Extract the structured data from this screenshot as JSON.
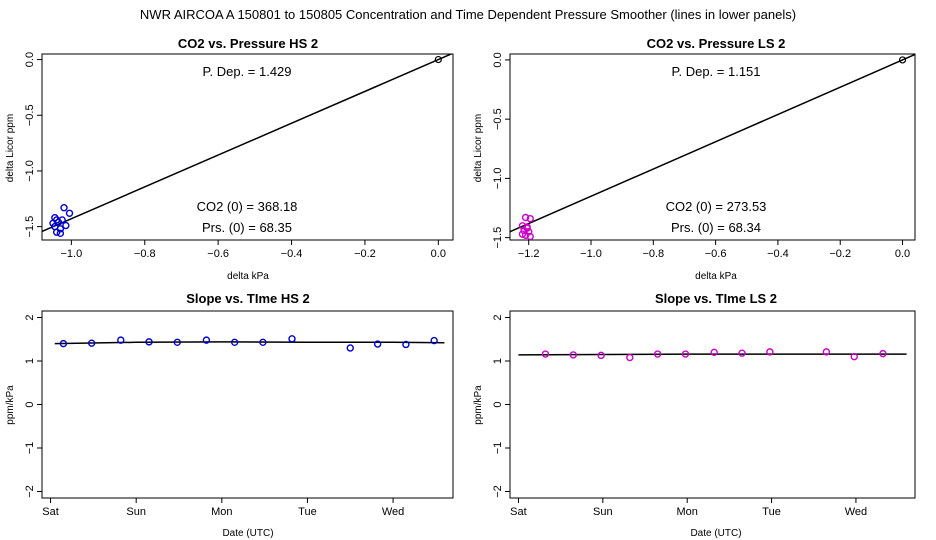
{
  "main_title": "NWR   AIRCOA A   150801 to 150805   Concentration and Time Dependent Pressure Smoother (lines in lower panels)",
  "colors": {
    "hs_points": "#0000cc",
    "ls_points": "#cc00cc",
    "line": "#000000"
  },
  "chart_data": [
    {
      "id": "hs-scatter",
      "type": "scatter",
      "title": "CO2 vs. Pressure HS 2",
      "xlabel": "delta kPa",
      "ylabel": "delta Licor ppm",
      "xlim": [
        -1.08,
        0.04
      ],
      "ylim": [
        -1.62,
        0.05
      ],
      "xticks": [
        -1.0,
        -0.8,
        -0.6,
        -0.4,
        -0.2,
        0.0
      ],
      "xtick_labels": [
        "−1.0",
        "−0.8",
        "−0.6",
        "−0.4",
        "−0.2",
        "0.0"
      ],
      "yticks": [
        0.0,
        -0.5,
        -1.0,
        -1.5
      ],
      "ytick_labels": [
        "0.0",
        "−0.5",
        "−1.0",
        "−1.5"
      ],
      "fit_line": {
        "slope": 1.429,
        "intercept": 0.0
      },
      "origin_point": {
        "x": 0.0,
        "y": 0.0
      },
      "points": [
        {
          "x": -1.035,
          "y": -1.46
        },
        {
          "x": -1.04,
          "y": -1.44
        },
        {
          "x": -1.045,
          "y": -1.5
        },
        {
          "x": -1.03,
          "y": -1.52
        },
        {
          "x": -1.02,
          "y": -1.33
        },
        {
          "x": -1.005,
          "y": -1.38
        },
        {
          "x": -1.025,
          "y": -1.44
        },
        {
          "x": -1.05,
          "y": -1.47
        },
        {
          "x": -1.04,
          "y": -1.55
        },
        {
          "x": -1.015,
          "y": -1.49
        },
        {
          "x": -1.03,
          "y": -1.56
        },
        {
          "x": -1.045,
          "y": -1.42
        }
      ],
      "annotations": {
        "p_dep": "P. Dep. =  1.429",
        "co2_0": "CO2 (0) =  368.18",
        "prs_0": "Prs. (0) =  68.35"
      }
    },
    {
      "id": "ls-scatter",
      "type": "scatter",
      "title": "CO2 vs. Pressure LS 2",
      "xlabel": "delta kPa",
      "ylabel": "delta Licor ppm",
      "xlim": [
        -1.26,
        0.04
      ],
      "ylim": [
        -1.52,
        0.05
      ],
      "xticks": [
        -1.2,
        -1.0,
        -0.8,
        -0.6,
        -0.4,
        -0.2,
        0.0
      ],
      "xtick_labels": [
        "−1.2",
        "−1.0",
        "−0.8",
        "−0.6",
        "−0.4",
        "−0.2",
        "0.0"
      ],
      "yticks": [
        0.0,
        -0.5,
        -1.0,
        -1.5
      ],
      "ytick_labels": [
        "0.0",
        "−0.5",
        "−1.0",
        "−1.5"
      ],
      "fit_line": {
        "slope": 1.151,
        "intercept": 0.0
      },
      "origin_point": {
        "x": 0.0,
        "y": 0.0
      },
      "points": [
        {
          "x": -1.21,
          "y": -1.33
        },
        {
          "x": -1.195,
          "y": -1.34
        },
        {
          "x": -1.22,
          "y": -1.4
        },
        {
          "x": -1.205,
          "y": -1.41
        },
        {
          "x": -1.215,
          "y": -1.44
        },
        {
          "x": -1.2,
          "y": -1.45
        },
        {
          "x": -1.21,
          "y": -1.48
        },
        {
          "x": -1.195,
          "y": -1.49
        },
        {
          "x": -1.22,
          "y": -1.47
        },
        {
          "x": -1.205,
          "y": -1.42
        }
      ],
      "annotations": {
        "p_dep": "P. Dep. =  1.151",
        "co2_0": "CO2 (0) =  273.53",
        "prs_0": "Prs. (0) =  68.34"
      }
    },
    {
      "id": "hs-slope",
      "type": "scatter",
      "title": "Slope vs. TIme HS 2",
      "xlabel": "Date (UTC)",
      "ylabel": "ppm/kPa",
      "xlim": [
        -0.1,
        4.7
      ],
      "ylim": [
        -2.15,
        2.15
      ],
      "xticks": [
        0,
        1,
        2,
        3,
        4
      ],
      "xtick_labels": [
        "Sat",
        "Sun",
        "Mon",
        "Tue",
        "Wed"
      ],
      "yticks": [
        2,
        1,
        0,
        -1,
        -2
      ],
      "ytick_labels": [
        "2",
        "1",
        "0",
        "−1",
        "−2"
      ],
      "points": [
        {
          "x": 0.15,
          "y": 1.4
        },
        {
          "x": 0.48,
          "y": 1.41
        },
        {
          "x": 0.82,
          "y": 1.48
        },
        {
          "x": 1.15,
          "y": 1.44
        },
        {
          "x": 1.48,
          "y": 1.43
        },
        {
          "x": 1.82,
          "y": 1.48
        },
        {
          "x": 2.15,
          "y": 1.43
        },
        {
          "x": 2.48,
          "y": 1.43
        },
        {
          "x": 2.82,
          "y": 1.51
        },
        {
          "x": 3.5,
          "y": 1.3
        },
        {
          "x": 3.82,
          "y": 1.39
        },
        {
          "x": 4.15,
          "y": 1.38
        },
        {
          "x": 4.48,
          "y": 1.47
        }
      ],
      "smoother": [
        {
          "x": 0.05,
          "y": 1.4
        },
        {
          "x": 1.0,
          "y": 1.43
        },
        {
          "x": 2.0,
          "y": 1.44
        },
        {
          "x": 3.0,
          "y": 1.43
        },
        {
          "x": 4.0,
          "y": 1.43
        },
        {
          "x": 4.6,
          "y": 1.42
        }
      ]
    },
    {
      "id": "ls-slope",
      "type": "scatter",
      "title": "Slope vs. TIme LS 2",
      "xlabel": "Date (UTC)",
      "ylabel": "ppm/kPa",
      "xlim": [
        -0.1,
        4.7
      ],
      "ylim": [
        -2.15,
        2.15
      ],
      "xticks": [
        0,
        1,
        2,
        3,
        4
      ],
      "xtick_labels": [
        "Sat",
        "Sun",
        "Mon",
        "Tue",
        "Wed"
      ],
      "yticks": [
        2,
        1,
        0,
        -1,
        -2
      ],
      "ytick_labels": [
        "2",
        "1",
        "0",
        "−1",
        "−2"
      ],
      "points": [
        {
          "x": 0.32,
          "y": 1.16
        },
        {
          "x": 0.65,
          "y": 1.14
        },
        {
          "x": 0.98,
          "y": 1.13
        },
        {
          "x": 1.32,
          "y": 1.08
        },
        {
          "x": 1.65,
          "y": 1.16
        },
        {
          "x": 1.98,
          "y": 1.16
        },
        {
          "x": 2.32,
          "y": 1.2
        },
        {
          "x": 2.65,
          "y": 1.18
        },
        {
          "x": 2.98,
          "y": 1.21
        },
        {
          "x": 3.65,
          "y": 1.21
        },
        {
          "x": 3.98,
          "y": 1.1
        },
        {
          "x": 4.32,
          "y": 1.17
        }
      ],
      "smoother": [
        {
          "x": 0.0,
          "y": 1.14
        },
        {
          "x": 1.0,
          "y": 1.15
        },
        {
          "x": 2.0,
          "y": 1.16
        },
        {
          "x": 3.0,
          "y": 1.16
        },
        {
          "x": 4.0,
          "y": 1.16
        },
        {
          "x": 4.6,
          "y": 1.16
        }
      ]
    }
  ]
}
